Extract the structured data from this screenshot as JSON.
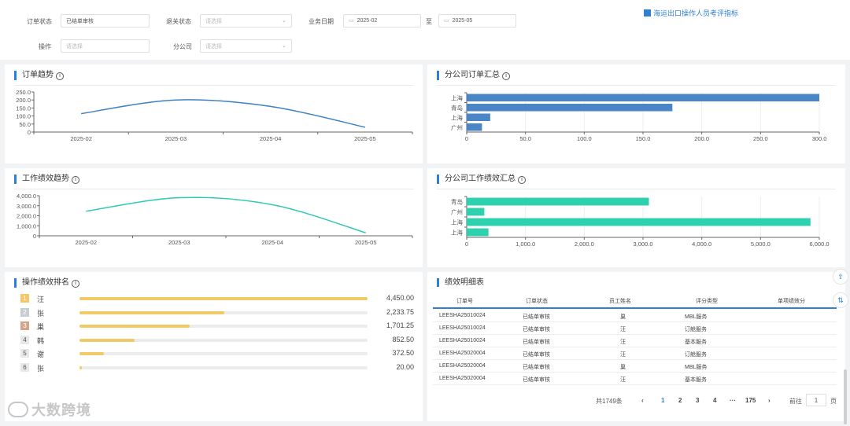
{
  "filters": {
    "order_status_label": "订单状态",
    "order_status_value": "已结单审核",
    "return_status_label": "退关状态",
    "return_status_placeholder": "请选择",
    "biz_date_label": "业务日期",
    "date_from": "2025-02",
    "date_sep": "至",
    "date_to": "2025-05",
    "operator_label": "操作",
    "operator_placeholder": "请选择",
    "branch_label": "分公司",
    "branch_placeholder": "请选择",
    "top_link": "海运出口操作人员考评指标"
  },
  "cards": {
    "order_trend": "订单趋势",
    "branch_order_summary": "分公司订单汇总",
    "perf_trend": "工作绩效趋势",
    "branch_perf_summary": "分公司工作绩效汇总",
    "op_ranking": "操作绩效排名",
    "perf_detail": "绩效明细表"
  },
  "colors": {
    "accent": "#2f7fd4",
    "order_line": "#3d82c4",
    "perf_line": "#2ecbb0",
    "order_bar": "#4a86c5",
    "perf_bar": "#2ed1ae",
    "rank_bar": "#f3c968"
  },
  "chart_data": [
    {
      "type": "line",
      "title": "订单趋势",
      "x": [
        "2025-02",
        "2025-03",
        "2025-04",
        "2025-05"
      ],
      "y_ticks": [
        "250.0",
        "200.0",
        "150.0",
        "100.0",
        "50.0",
        "0"
      ],
      "ylim": [
        0,
        250
      ],
      "series": [
        {
          "values": [
            115,
            200,
            160,
            30
          ]
        }
      ]
    },
    {
      "type": "bar",
      "orientation": "horizontal",
      "title": "分公司订单汇总",
      "categories": [
        "上海",
        "青岛",
        "上海",
        "广州"
      ],
      "values": [
        300,
        175,
        20,
        13
      ],
      "x_ticks": [
        "0",
        "50.0",
        "100.0",
        "150.0",
        "200.0",
        "250.0",
        "300.0"
      ],
      "xlim": [
        0,
        300
      ]
    },
    {
      "type": "line",
      "title": "工作绩效趋势",
      "x": [
        "2025-02",
        "2025-03",
        "2025-04",
        "2025-05"
      ],
      "y_ticks": [
        "4,000.0",
        "3,000.0",
        "2,000.0",
        "1,000.0",
        "0"
      ],
      "ylim": [
        0,
        4000
      ],
      "series": [
        {
          "values": [
            2450,
            3800,
            3100,
            300
          ]
        }
      ]
    },
    {
      "type": "bar",
      "orientation": "horizontal",
      "title": "分公司工作绩效汇总",
      "categories": [
        "青岛",
        "广州",
        "上海",
        "上海"
      ],
      "values": [
        3100,
        300,
        5850,
        370
      ],
      "x_ticks": [
        "0",
        "1,000.0",
        "2,000.0",
        "3,000.0",
        "4,000.0",
        "5,000.0",
        "6,000.0"
      ],
      "xlim": [
        0,
        6000
      ]
    }
  ],
  "ranking": [
    {
      "rank": "1",
      "name": "汪",
      "value": "4,450.00",
      "num": 4450
    },
    {
      "rank": "2",
      "name": "张",
      "value": "2,233.75",
      "num": 2233.75
    },
    {
      "rank": "3",
      "name": "巢",
      "value": "1,701.25",
      "num": 1701.25
    },
    {
      "rank": "4",
      "name": "韩",
      "value": "852.50",
      "num": 852.5
    },
    {
      "rank": "5",
      "name": "谢",
      "value": "372.50",
      "num": 372.5
    },
    {
      "rank": "6",
      "name": "张",
      "value": "20.00",
      "num": 20
    }
  ],
  "table": {
    "headers": [
      "订单号",
      "订单状态",
      "员工姓名",
      "评分类型",
      "单项绩效分"
    ],
    "rows": [
      [
        "LEESHA25010024",
        "已结单审核",
        "巢",
        "MBL服务",
        ""
      ],
      [
        "LEESHA25010024",
        "已结单审核",
        "汪",
        "订舱服务",
        ""
      ],
      [
        "LEESHA25010024",
        "已结单审核",
        "汪",
        "基本服务",
        ""
      ],
      [
        "LEESHA25020004",
        "已结单审核",
        "汪",
        "订舱服务",
        ""
      ],
      [
        "LEESHA25020004",
        "已结单审核",
        "巢",
        "MBL服务",
        ""
      ],
      [
        "LEESHA25020004",
        "已结单审核",
        "汪",
        "基本服务",
        ""
      ]
    ]
  },
  "pagination": {
    "total": "共1749条",
    "prev": "‹",
    "pages": [
      "1",
      "2",
      "3",
      "4",
      "···",
      "175"
    ],
    "next": "›",
    "goto_label": "前往",
    "goto_value": "1",
    "page_unit": "页"
  },
  "watermark": "大数跨境"
}
